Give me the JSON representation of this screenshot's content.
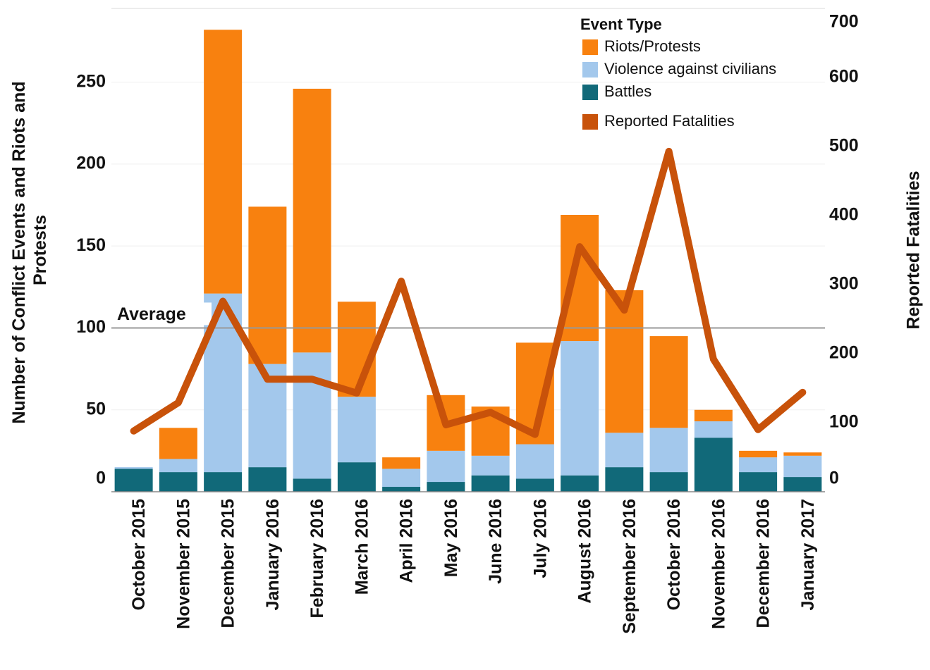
{
  "chart_data": {
    "type": "bar",
    "ylabel": [
      "Number of Conflict Events and Riots and",
      "Protests"
    ],
    "y2label": "Reported Fatalities",
    "legend_title": "Event Type",
    "legend": "top-right",
    "categories": [
      "October 2015",
      "November 2015",
      "December 2015",
      "January 2016",
      "February 2016",
      "March 2016",
      "April 2016",
      "May 2016",
      "June 2016",
      "July 2016",
      "August 2016",
      "September 2016",
      "October 2016",
      "November 2016",
      "December 2016",
      "January 2017"
    ],
    "series": [
      {
        "name": "Riots/Protests",
        "color": "#f8810f",
        "values": [
          0,
          19,
          161,
          96,
          161,
          58,
          7,
          34,
          30,
          62,
          77,
          87,
          56,
          7,
          4,
          2
        ]
      },
      {
        "name": "Violence against civilians",
        "color": "#a3c8ec",
        "values": [
          1,
          8,
          109,
          63,
          77,
          40,
          11,
          19,
          12,
          21,
          82,
          21,
          27,
          10,
          9,
          13
        ]
      },
      {
        "name": "Battles",
        "color": "#116979",
        "values": [
          14,
          12,
          12,
          15,
          8,
          18,
          3,
          6,
          10,
          8,
          10,
          15,
          12,
          33,
          12,
          9
        ]
      },
      {
        "name": "Reported Fatalities",
        "color": "#c8520a",
        "type": "line",
        "axis": "y2",
        "values": [
          88,
          129,
          276,
          163,
          163,
          143,
          305,
          97,
          115,
          83,
          355,
          263,
          493,
          192,
          90,
          144
        ]
      }
    ],
    "average": {
      "label": "Average",
      "value": 100
    },
    "ylim": [
      0,
      295
    ],
    "yticks": [
      0,
      50,
      100,
      150,
      200,
      250
    ],
    "y2lim": [
      0,
      700
    ],
    "y2ticks": [
      0,
      100,
      200,
      300,
      400,
      500,
      600,
      700
    ],
    "grid": true
  }
}
